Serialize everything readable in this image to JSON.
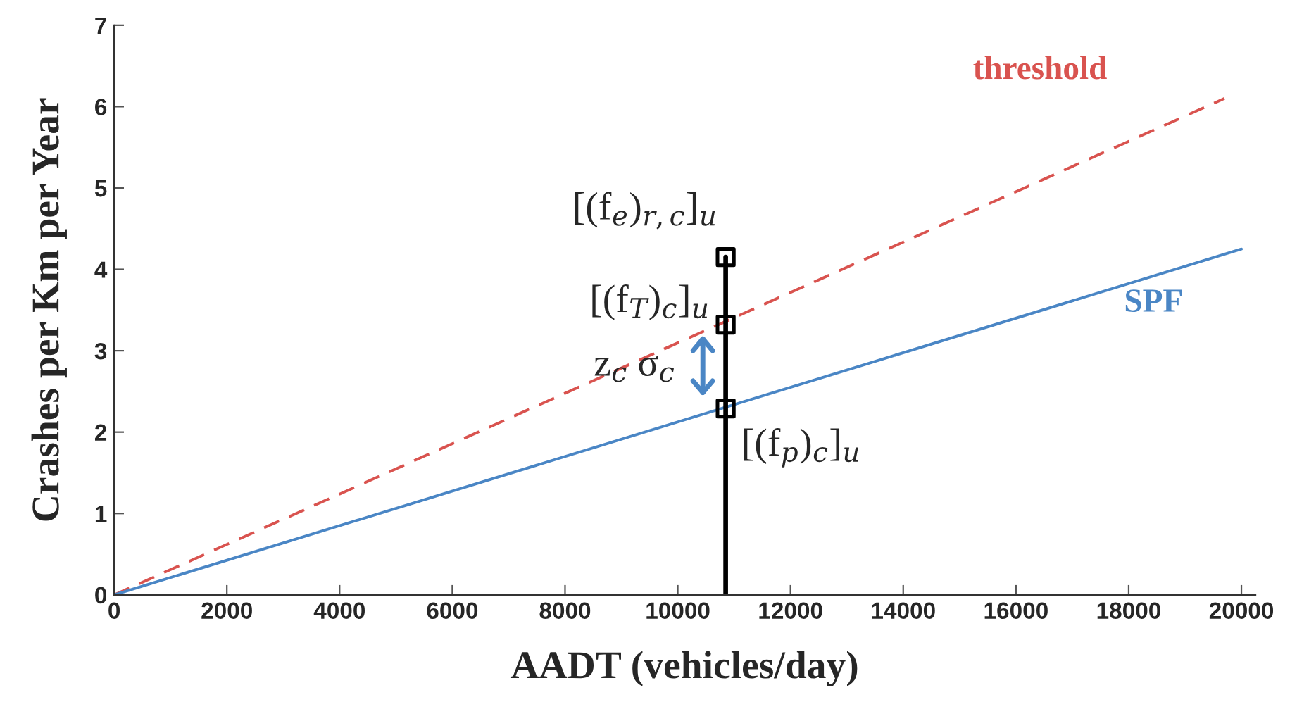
{
  "chart_data": {
    "type": "line",
    "xlabel": "AADT (vehicles/day)",
    "ylabel": "Crashes per Km per Year",
    "xlim": [
      0,
      20250
    ],
    "xticks": [
      0,
      2000,
      4000,
      6000,
      8000,
      10000,
      12000,
      14000,
      16000,
      18000,
      20000
    ],
    "ylim": [
      0,
      7
    ],
    "yticks": [
      0,
      1,
      2,
      3,
      4,
      5,
      6,
      7
    ],
    "grid": false,
    "legend": false,
    "series": [
      {
        "name": "threshold",
        "color": "#d9534f",
        "line_style": "dashed",
        "marker": "none",
        "x": [
          0,
          19700
        ],
        "values": [
          0,
          6.1
        ]
      },
      {
        "name": "SPF",
        "color": "#4a86c5",
        "line_style": "solid",
        "marker": "none",
        "x": [
          0,
          20000
        ],
        "values": [
          0,
          4.25
        ]
      },
      {
        "color": "#000000",
        "line_style": "solid",
        "marker": "none",
        "x": [
          10850,
          10850
        ],
        "values": [
          0,
          4.15
        ]
      },
      {
        "type": "scatter",
        "color": "#000000",
        "marker": "square",
        "x": [
          10850,
          10850,
          10850
        ],
        "values": [
          4.15,
          3.32,
          2.29
        ]
      }
    ],
    "annotations": [
      "[(f$_{e}$)$_{r,c}$]$_{u}$",
      "[(f$_{T}$)$_{c}$]$_{u}$",
      "[(f$_{p}$)$_{c}$]$_{u}$",
      "z$_{c}$ σ$_{c}$"
    ]
  }
}
